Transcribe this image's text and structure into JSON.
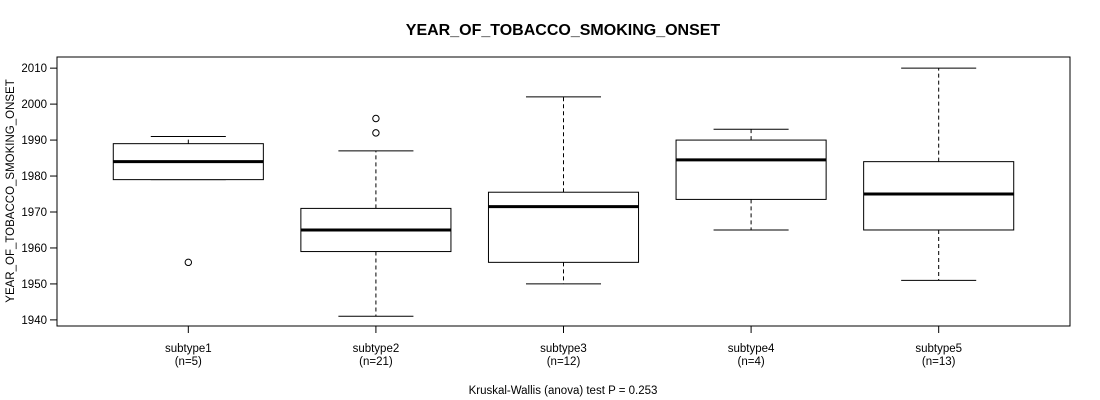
{
  "chart_data": {
    "type": "boxplot",
    "title": "YEAR_OF_TOBACCO_SMOKING_ONSET",
    "ylabel": "YEAR_OF_TOBACCO_SMOKING_ONSET",
    "xlabel": "",
    "annotation": "Kruskal-Wallis (anova) test P = 0.253",
    "ylim": [
      1938.3,
      2013.1
    ],
    "yticks": [
      1940,
      1950,
      1960,
      1970,
      1980,
      1990,
      2000,
      2010
    ],
    "grid": false,
    "box_fill": "#ffffff",
    "line_color": "#000000",
    "series": [
      {
        "label": "subtype1",
        "sublabel": "(n=5)",
        "n": 5,
        "whisker_low": 1979,
        "q1": 1979,
        "median": 1984,
        "q3": 1989,
        "whisker_high": 1991,
        "outliers": [
          1956
        ]
      },
      {
        "label": "subtype2",
        "sublabel": "(n=21)",
        "n": 21,
        "whisker_low": 1941,
        "q1": 1959,
        "median": 1965,
        "q3": 1971,
        "whisker_high": 1987,
        "outliers": [
          1992,
          1996
        ]
      },
      {
        "label": "subtype3",
        "sublabel": "(n=12)",
        "n": 12,
        "whisker_low": 1950,
        "q1": 1956,
        "median": 1971.5,
        "q3": 1975.5,
        "whisker_high": 2002,
        "outliers": []
      },
      {
        "label": "subtype4",
        "sublabel": "(n=4)",
        "n": 4,
        "whisker_low": 1965,
        "q1": 1973.5,
        "median": 1984.5,
        "q3": 1990,
        "whisker_high": 1993,
        "outliers": []
      },
      {
        "label": "subtype5",
        "sublabel": "(n=13)",
        "n": 13,
        "whisker_low": 1951,
        "q1": 1965,
        "median": 1975,
        "q3": 1984,
        "whisker_high": 2010,
        "outliers": []
      }
    ]
  }
}
